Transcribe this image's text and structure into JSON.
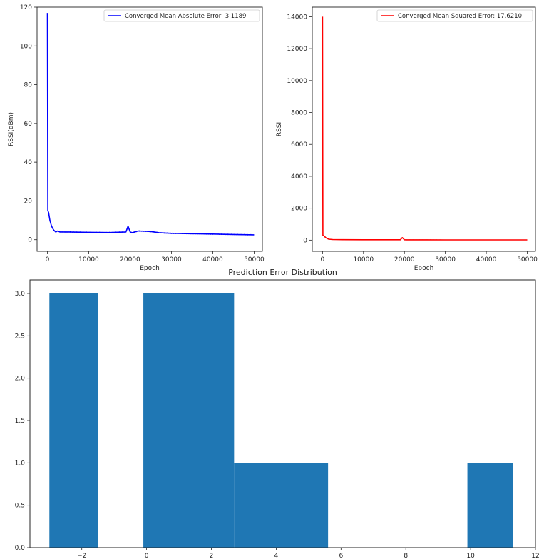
{
  "chart_data": [
    {
      "type": "line",
      "title": "",
      "xlabel": "Epoch",
      "ylabel": "RSSI(dBm)",
      "xlim": [
        -2500,
        52000
      ],
      "ylim": [
        -6,
        120
      ],
      "xticks": [
        0,
        10000,
        20000,
        30000,
        40000,
        50000
      ],
      "yticks": [
        0,
        20,
        40,
        60,
        80,
        100,
        120
      ],
      "grid": false,
      "legend_position": "top-right",
      "series": [
        {
          "name": "Converged Mean Absolute Error: 3.1189",
          "color": "#0000ff",
          "x": [
            0,
            100,
            300,
            600,
            1000,
            1500,
            2000,
            2500,
            3000,
            5000,
            10000,
            15000,
            19000,
            19500,
            20000,
            20500,
            22000,
            25000,
            27000,
            30000,
            35000,
            40000,
            45000,
            50000
          ],
          "y": [
            117,
            15,
            14,
            10,
            7,
            5,
            4,
            4.5,
            4,
            4,
            3.8,
            3.7,
            4,
            7,
            4,
            3.6,
            4.5,
            4.2,
            3.6,
            3.3,
            3.1,
            2.9,
            2.7,
            2.5
          ]
        }
      ]
    },
    {
      "type": "line",
      "title": "",
      "xlabel": "Epoch",
      "ylabel": "RSSI",
      "xlim": [
        -2500,
        52000
      ],
      "ylim": [
        -700,
        14600
      ],
      "xticks": [
        0,
        10000,
        20000,
        30000,
        40000,
        50000
      ],
      "yticks": [
        0,
        2000,
        4000,
        6000,
        8000,
        10000,
        12000,
        14000
      ],
      "grid": false,
      "legend_position": "top-right",
      "series": [
        {
          "name": "Converged Mean Squared Error: 17.6210",
          "color": "#ff0000",
          "x": [
            0,
            100,
            300,
            800,
            1500,
            2500,
            5000,
            10000,
            19000,
            19500,
            20000,
            20500,
            25000,
            30000,
            40000,
            50000
          ],
          "y": [
            14000,
            300,
            280,
            150,
            60,
            40,
            30,
            25,
            25,
            160,
            25,
            20,
            20,
            18,
            18,
            17
          ]
        }
      ]
    },
    {
      "type": "bar",
      "title": "Prediction Error Distribution",
      "xlabel": "",
      "ylabel": "",
      "xlim": [
        -3.6,
        12
      ],
      "ylim": [
        0,
        3.16
      ],
      "xticks": [
        -2,
        0,
        2,
        4,
        6,
        8,
        10,
        12
      ],
      "yticks": [
        0.0,
        0.5,
        1.0,
        1.5,
        2.0,
        2.5,
        3.0
      ],
      "grid": false,
      "color": "#1f77b4",
      "bins": [
        {
          "start": -3.0,
          "end": -1.5,
          "count": 3
        },
        {
          "start": -0.1,
          "end": 2.7,
          "count": 3
        },
        {
          "start": 2.7,
          "end": 5.6,
          "count": 1
        },
        {
          "start": 9.9,
          "end": 11.3,
          "count": 1
        }
      ]
    }
  ]
}
